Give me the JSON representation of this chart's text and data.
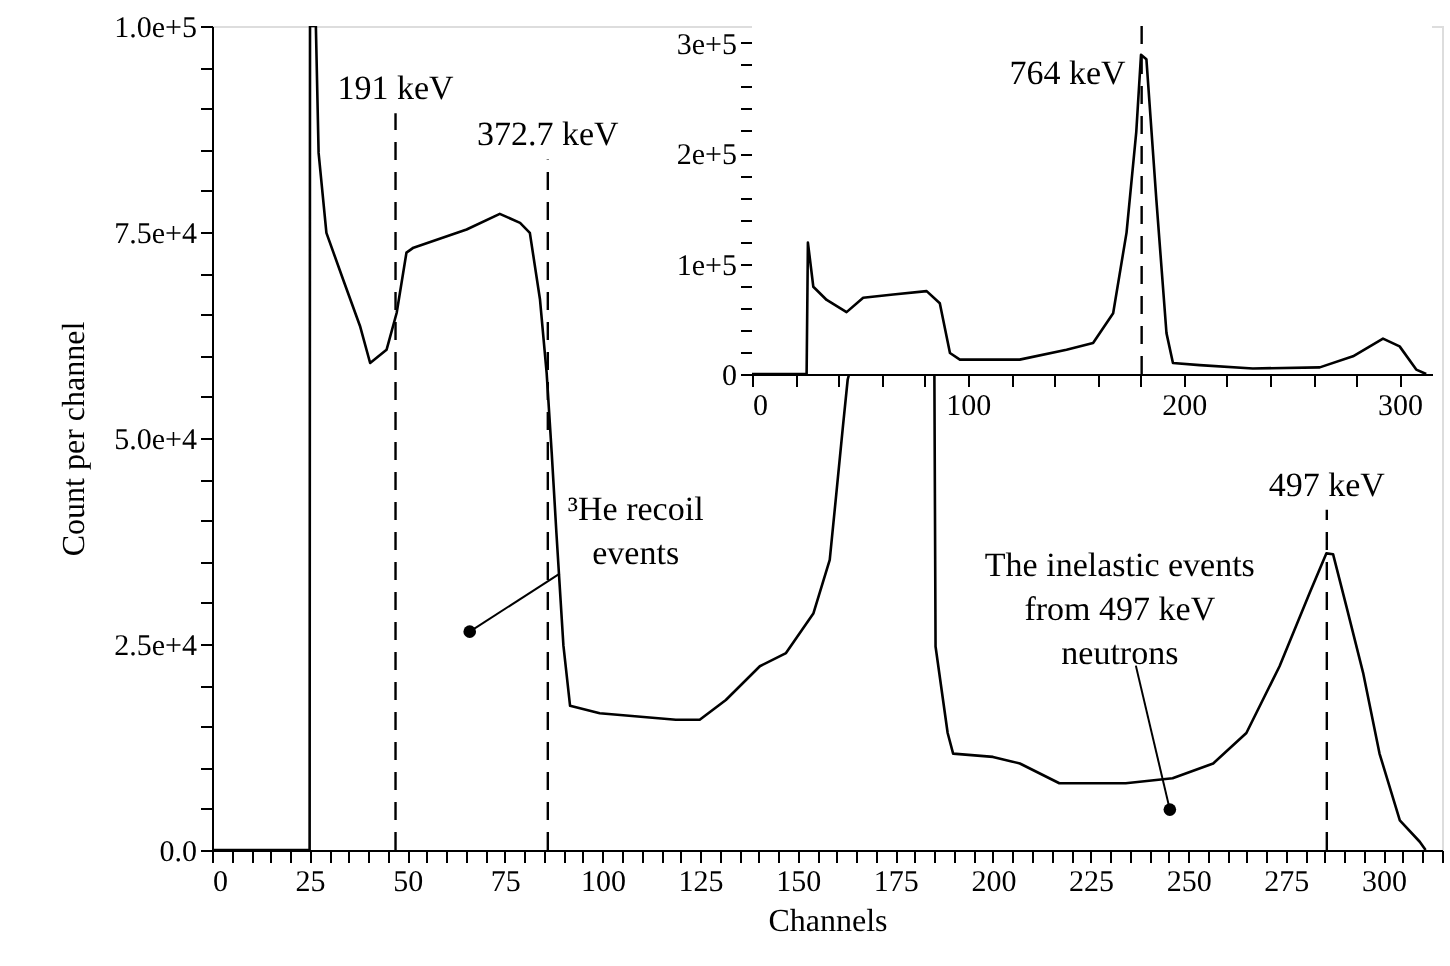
{
  "chart_data": [
    {
      "type": "line",
      "xlabel": "Channels",
      "ylabel": "Count per channel",
      "grid": false,
      "x": [
        0,
        25,
        25.1,
        26.6,
        27.3,
        29.3,
        33.6,
        37.9,
        40.5,
        44.7,
        47.3,
        49.8,
        51.6,
        65.2,
        73.7,
        78.9,
        81.4,
        84,
        85.7,
        87,
        88.2,
        90,
        91.7,
        99.3,
        118.8,
        124.9,
        131.6,
        140.3,
        147,
        154,
        158.2,
        159.9,
        161.6,
        162.8,
        163.2,
        174,
        185,
        185.3,
        188.4,
        189.8,
        200,
        206.9,
        217,
        234,
        246,
        256.4,
        264.9,
        273.4,
        281.1,
        285.4,
        287.1,
        290.5,
        294.8,
        299,
        304.2,
        309.3,
        310.8
      ],
      "series": [
        {
          "color": "#000000",
          "values": [
            0,
            0,
            100000,
            100000,
            84600,
            74900,
            69200,
            63600,
            59100,
            60700,
            65200,
            72500,
            73100,
            75300,
            77200,
            76100,
            74900,
            66800,
            57900,
            48200,
            38500,
            24800,
            17500,
            16600,
            15800,
            15800,
            18200,
            22300,
            23900,
            28700,
            35200,
            43300,
            51500,
            57100,
            57800,
            null,
            57800,
            24700,
            14200,
            11700,
            11300,
            10500,
            8100,
            8100,
            8700,
            10500,
            14200,
            22300,
            31200,
            36000,
            35900,
            29600,
            21500,
            11700,
            3600,
            1000,
            0
          ]
        }
      ],
      "xlim": [
        0,
        315
      ],
      "ylim": [
        0,
        100000
      ],
      "xticks": [
        0,
        {
          "value": 5,
          "label": null
        },
        {
          "value": 10,
          "label": null
        },
        {
          "value": 15,
          "label": null
        },
        {
          "value": 20,
          "label": null
        },
        25,
        {
          "value": 30,
          "label": null
        },
        {
          "value": 35,
          "label": null
        },
        {
          "value": 40,
          "label": null
        },
        {
          "value": 45,
          "label": null
        },
        50,
        {
          "value": 55,
          "label": null
        },
        {
          "value": 60,
          "label": null
        },
        {
          "value": 65,
          "label": null
        },
        {
          "value": 70,
          "label": null
        },
        75,
        {
          "value": 80,
          "label": null
        },
        {
          "value": 85,
          "label": null
        },
        {
          "value": 90,
          "label": null
        },
        {
          "value": 95,
          "label": null
        },
        100,
        {
          "value": 105,
          "label": null
        },
        {
          "value": 110,
          "label": null
        },
        {
          "value": 115,
          "label": null
        },
        {
          "value": 120,
          "label": null
        },
        125,
        {
          "value": 130,
          "label": null
        },
        {
          "value": 135,
          "label": null
        },
        {
          "value": 140,
          "label": null
        },
        {
          "value": 145,
          "label": null
        },
        150,
        {
          "value": 155,
          "label": null
        },
        {
          "value": 160,
          "label": null
        },
        {
          "value": 165,
          "label": null
        },
        {
          "value": 170,
          "label": null
        },
        175,
        {
          "value": 180,
          "label": null
        },
        {
          "value": 185,
          "label": null
        },
        {
          "value": 190,
          "label": null
        },
        {
          "value": 195,
          "label": null
        },
        200,
        {
          "value": 205,
          "label": null
        },
        {
          "value": 210,
          "label": null
        },
        {
          "value": 215,
          "label": null
        },
        {
          "value": 220,
          "label": null
        },
        225,
        {
          "value": 230,
          "label": null
        },
        {
          "value": 235,
          "label": null
        },
        {
          "value": 240,
          "label": null
        },
        {
          "value": 245,
          "label": null
        },
        250,
        {
          "value": 255,
          "label": null
        },
        {
          "value": 260,
          "label": null
        },
        {
          "value": 265,
          "label": null
        },
        {
          "value": 270,
          "label": null
        },
        275,
        {
          "value": 280,
          "label": null
        },
        {
          "value": 285,
          "label": null
        },
        {
          "value": 290,
          "label": null
        },
        {
          "value": 295,
          "label": null
        },
        300,
        {
          "value": 305,
          "label": null
        },
        {
          "value": 310,
          "label": null
        },
        {
          "value": 315,
          "label": null
        }
      ],
      "yticks": [
        {
          "value": 0,
          "label": "0.0"
        },
        {
          "value": 5000,
          "label": null
        },
        {
          "value": 10000,
          "label": null
        },
        {
          "value": 15000,
          "label": null
        },
        {
          "value": 20000,
          "label": null
        },
        {
          "value": 25000,
          "label": "2.5e+4"
        },
        {
          "value": 30000,
          "label": null
        },
        {
          "value": 35000,
          "label": null
        },
        {
          "value": 40000,
          "label": null
        },
        {
          "value": 45000,
          "label": null
        },
        {
          "value": 50000,
          "label": "5.0e+4"
        },
        {
          "value": 55000,
          "label": null
        },
        {
          "value": 60000,
          "label": null
        },
        {
          "value": 65000,
          "label": null
        },
        {
          "value": 70000,
          "label": null
        },
        {
          "value": 75000,
          "label": "7.5e+4"
        },
        {
          "value": 80000,
          "label": null
        },
        {
          "value": 85000,
          "label": null
        },
        {
          "value": 90000,
          "label": null
        },
        {
          "value": 95000,
          "label": null
        },
        {
          "value": 100000,
          "label": "1.0e+5"
        }
      ],
      "ref_lines": [
        {
          "axis": "x",
          "value": 47,
          "line_style": "dashed"
        },
        {
          "axis": "x",
          "value": 86,
          "line_style": "dashed"
        },
        {
          "axis": "x",
          "value": 285.5,
          "line_style": "dashed"
        }
      ],
      "annotations": [
        {
          "text": "191 keV",
          "x": 47,
          "y": 89400
        },
        {
          "text": "372.7 keV",
          "x": 86,
          "y": 83800
        },
        {
          "text": "497 keV",
          "x": 285.5,
          "y": 41300
        },
        {
          "text": "³He recoil\nevents",
          "x": 66,
          "y": 26500
        },
        {
          "text": "The inelastic events\nfrom 497 keV\nneutrons",
          "x": 245.3,
          "y": 4900
        }
      ]
    },
    {
      "type": "line",
      "grid": false,
      "x": [
        0,
        25.3,
        25.9,
        28.4,
        34.6,
        43.8,
        51.5,
        65.4,
        80.9,
        87,
        91.7,
        96.3,
        124,
        145.7,
        158,
        167.3,
        173.5,
        178,
        180.2,
        182.7,
        187.3,
        192,
        195,
        207.4,
        232,
        263,
        278.4,
        292.3,
        300,
        307.7,
        312.3
      ],
      "series": [
        {
          "color": "#000000",
          "values": [
            0,
            0,
            119000,
            79000,
            67000,
            56000,
            69000,
            72000,
            75000,
            64000,
            19000,
            13000,
            13000,
            22000,
            28000,
            55000,
            128000,
            219000,
            289000,
            285000,
            158000,
            37000,
            10000,
            8000,
            5000,
            6000,
            16000,
            32000,
            25000,
            4000,
            0
          ]
        }
      ],
      "xlim": [
        0,
        315
      ],
      "ylim": [
        0,
        315000
      ],
      "xticks": [
        0,
        {
          "value": 20,
          "label": null
        },
        {
          "value": 40,
          "label": null
        },
        {
          "value": 60,
          "label": null
        },
        {
          "value": 80,
          "label": null
        },
        100,
        {
          "value": 120,
          "label": null
        },
        {
          "value": 140,
          "label": null
        },
        {
          "value": 160,
          "label": null
        },
        {
          "value": 180,
          "label": null
        },
        200,
        {
          "value": 220,
          "label": null
        },
        {
          "value": 240,
          "label": null
        },
        {
          "value": 260,
          "label": null
        },
        {
          "value": 280,
          "label": null
        },
        300
      ],
      "yticks": [
        0,
        {
          "value": 20000,
          "label": null
        },
        {
          "value": 40000,
          "label": null
        },
        {
          "value": 60000,
          "label": null
        },
        {
          "value": 80000,
          "label": null
        },
        {
          "value": 100000,
          "label": "1e+5"
        },
        {
          "value": 120000,
          "label": null
        },
        {
          "value": 140000,
          "label": null
        },
        {
          "value": 160000,
          "label": null
        },
        {
          "value": 180000,
          "label": null
        },
        {
          "value": 200000,
          "label": "2e+5"
        },
        {
          "value": 220000,
          "label": null
        },
        {
          "value": 240000,
          "label": null
        },
        {
          "value": 260000,
          "label": null
        },
        {
          "value": 280000,
          "label": null
        },
        {
          "value": 300000,
          "label": "3e+5"
        }
      ],
      "ref_lines": [
        {
          "axis": "x",
          "value": 180.5,
          "line_style": "dashed",
          "label": "764 keV"
        }
      ]
    }
  ]
}
